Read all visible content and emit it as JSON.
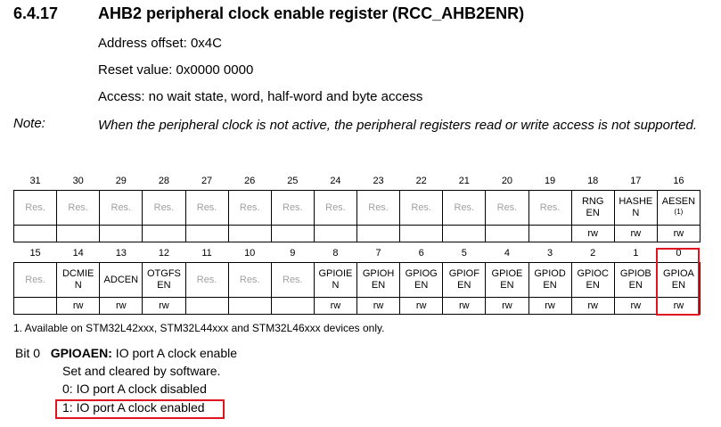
{
  "section": {
    "number": "6.4.17",
    "title": "AHB2 peripheral clock enable register (RCC_AHB2ENR)"
  },
  "info": {
    "address_offset": "Address offset: 0x4C",
    "reset_value": "Reset value: 0x0000 0000",
    "access": "Access: no wait state, word, half-word and byte access"
  },
  "note": {
    "label": "Note:",
    "text": "When the peripheral clock is not active, the peripheral registers read or write access is not supported."
  },
  "register": {
    "upper": {
      "bits": [
        "31",
        "30",
        "29",
        "28",
        "27",
        "26",
        "25",
        "24",
        "23",
        "22",
        "21",
        "20",
        "19",
        "18",
        "17",
        "16"
      ],
      "fields": [
        {
          "name": "Res.",
          "reserved": true
        },
        {
          "name": "Res.",
          "reserved": true
        },
        {
          "name": "Res.",
          "reserved": true
        },
        {
          "name": "Res.",
          "reserved": true
        },
        {
          "name": "Res.",
          "reserved": true
        },
        {
          "name": "Res.",
          "reserved": true
        },
        {
          "name": "Res.",
          "reserved": true
        },
        {
          "name": "Res.",
          "reserved": true
        },
        {
          "name": "Res.",
          "reserved": true
        },
        {
          "name": "Res.",
          "reserved": true
        },
        {
          "name": "Res.",
          "reserved": true
        },
        {
          "name": "Res.",
          "reserved": true
        },
        {
          "name": "Res.",
          "reserved": true
        },
        {
          "name": "RNG\nEN",
          "reserved": false
        },
        {
          "name": "HASHE\nN",
          "reserved": false
        },
        {
          "name": "AESEN",
          "footnote": "(1)",
          "reserved": false
        }
      ],
      "access": [
        "",
        "",
        "",
        "",
        "",
        "",
        "",
        "",
        "",
        "",
        "",
        "",
        "",
        "rw",
        "rw",
        "rw"
      ]
    },
    "lower": {
      "bits": [
        "15",
        "14",
        "13",
        "12",
        "11",
        "10",
        "9",
        "8",
        "7",
        "6",
        "5",
        "4",
        "3",
        "2",
        "1",
        "0"
      ],
      "fields": [
        {
          "name": "Res.",
          "reserved": true
        },
        {
          "name": "DCMIE\nN",
          "reserved": false
        },
        {
          "name": "ADCEN",
          "reserved": false
        },
        {
          "name": "OTGFS\nEN",
          "reserved": false
        },
        {
          "name": "Res.",
          "reserved": true
        },
        {
          "name": "Res.",
          "reserved": true
        },
        {
          "name": "Res.",
          "reserved": true
        },
        {
          "name": "GPIOIE\nN",
          "reserved": false
        },
        {
          "name": "GPIOH\nEN",
          "reserved": false
        },
        {
          "name": "GPIOG\nEN",
          "reserved": false
        },
        {
          "name": "GPIOF\nEN",
          "reserved": false
        },
        {
          "name": "GPIOE\nEN",
          "reserved": false
        },
        {
          "name": "GPIOD\nEN",
          "reserved": false
        },
        {
          "name": "GPIOC\nEN",
          "reserved": false
        },
        {
          "name": "GPIOB\nEN",
          "reserved": false
        },
        {
          "name": "GPIOA\nEN",
          "reserved": false
        }
      ],
      "access": [
        "",
        "rw",
        "rw",
        "rw",
        "",
        "",
        "",
        "rw",
        "rw",
        "rw",
        "rw",
        "rw",
        "rw",
        "rw",
        "rw",
        "rw"
      ]
    }
  },
  "footnote": "1.   Available on STM32L42xxx, STM32L44xxx and STM32L46xxx devices only.",
  "bit_desc": {
    "bit": "Bit 0",
    "name": "GPIOAEN:",
    "title": " IO port A clock enable",
    "line1": "Set and cleared by software.",
    "line2": "0: IO port A clock disabled",
    "line3": "1: IO port A clock enabled"
  },
  "colors": {
    "highlight": "#e0141e",
    "reserved_text": "#a0a0a0"
  }
}
